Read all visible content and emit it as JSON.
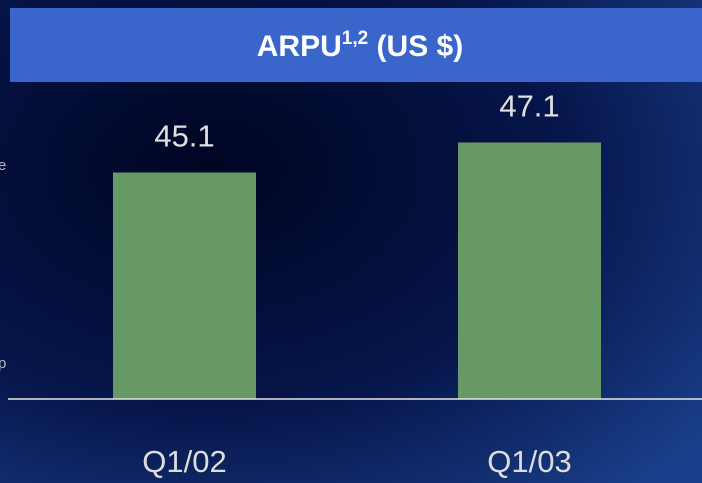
{
  "chart_data": {
    "type": "bar",
    "title": "ARPU",
    "title_superscript": "1,2",
    "title_suffix": " (US $)",
    "categories": [
      "Q1/02",
      "Q1/03"
    ],
    "values": [
      45.1,
      47.1
    ],
    "color": "#669966",
    "ylim": [
      30,
      48
    ],
    "annotations": [
      "e",
      "p"
    ]
  }
}
